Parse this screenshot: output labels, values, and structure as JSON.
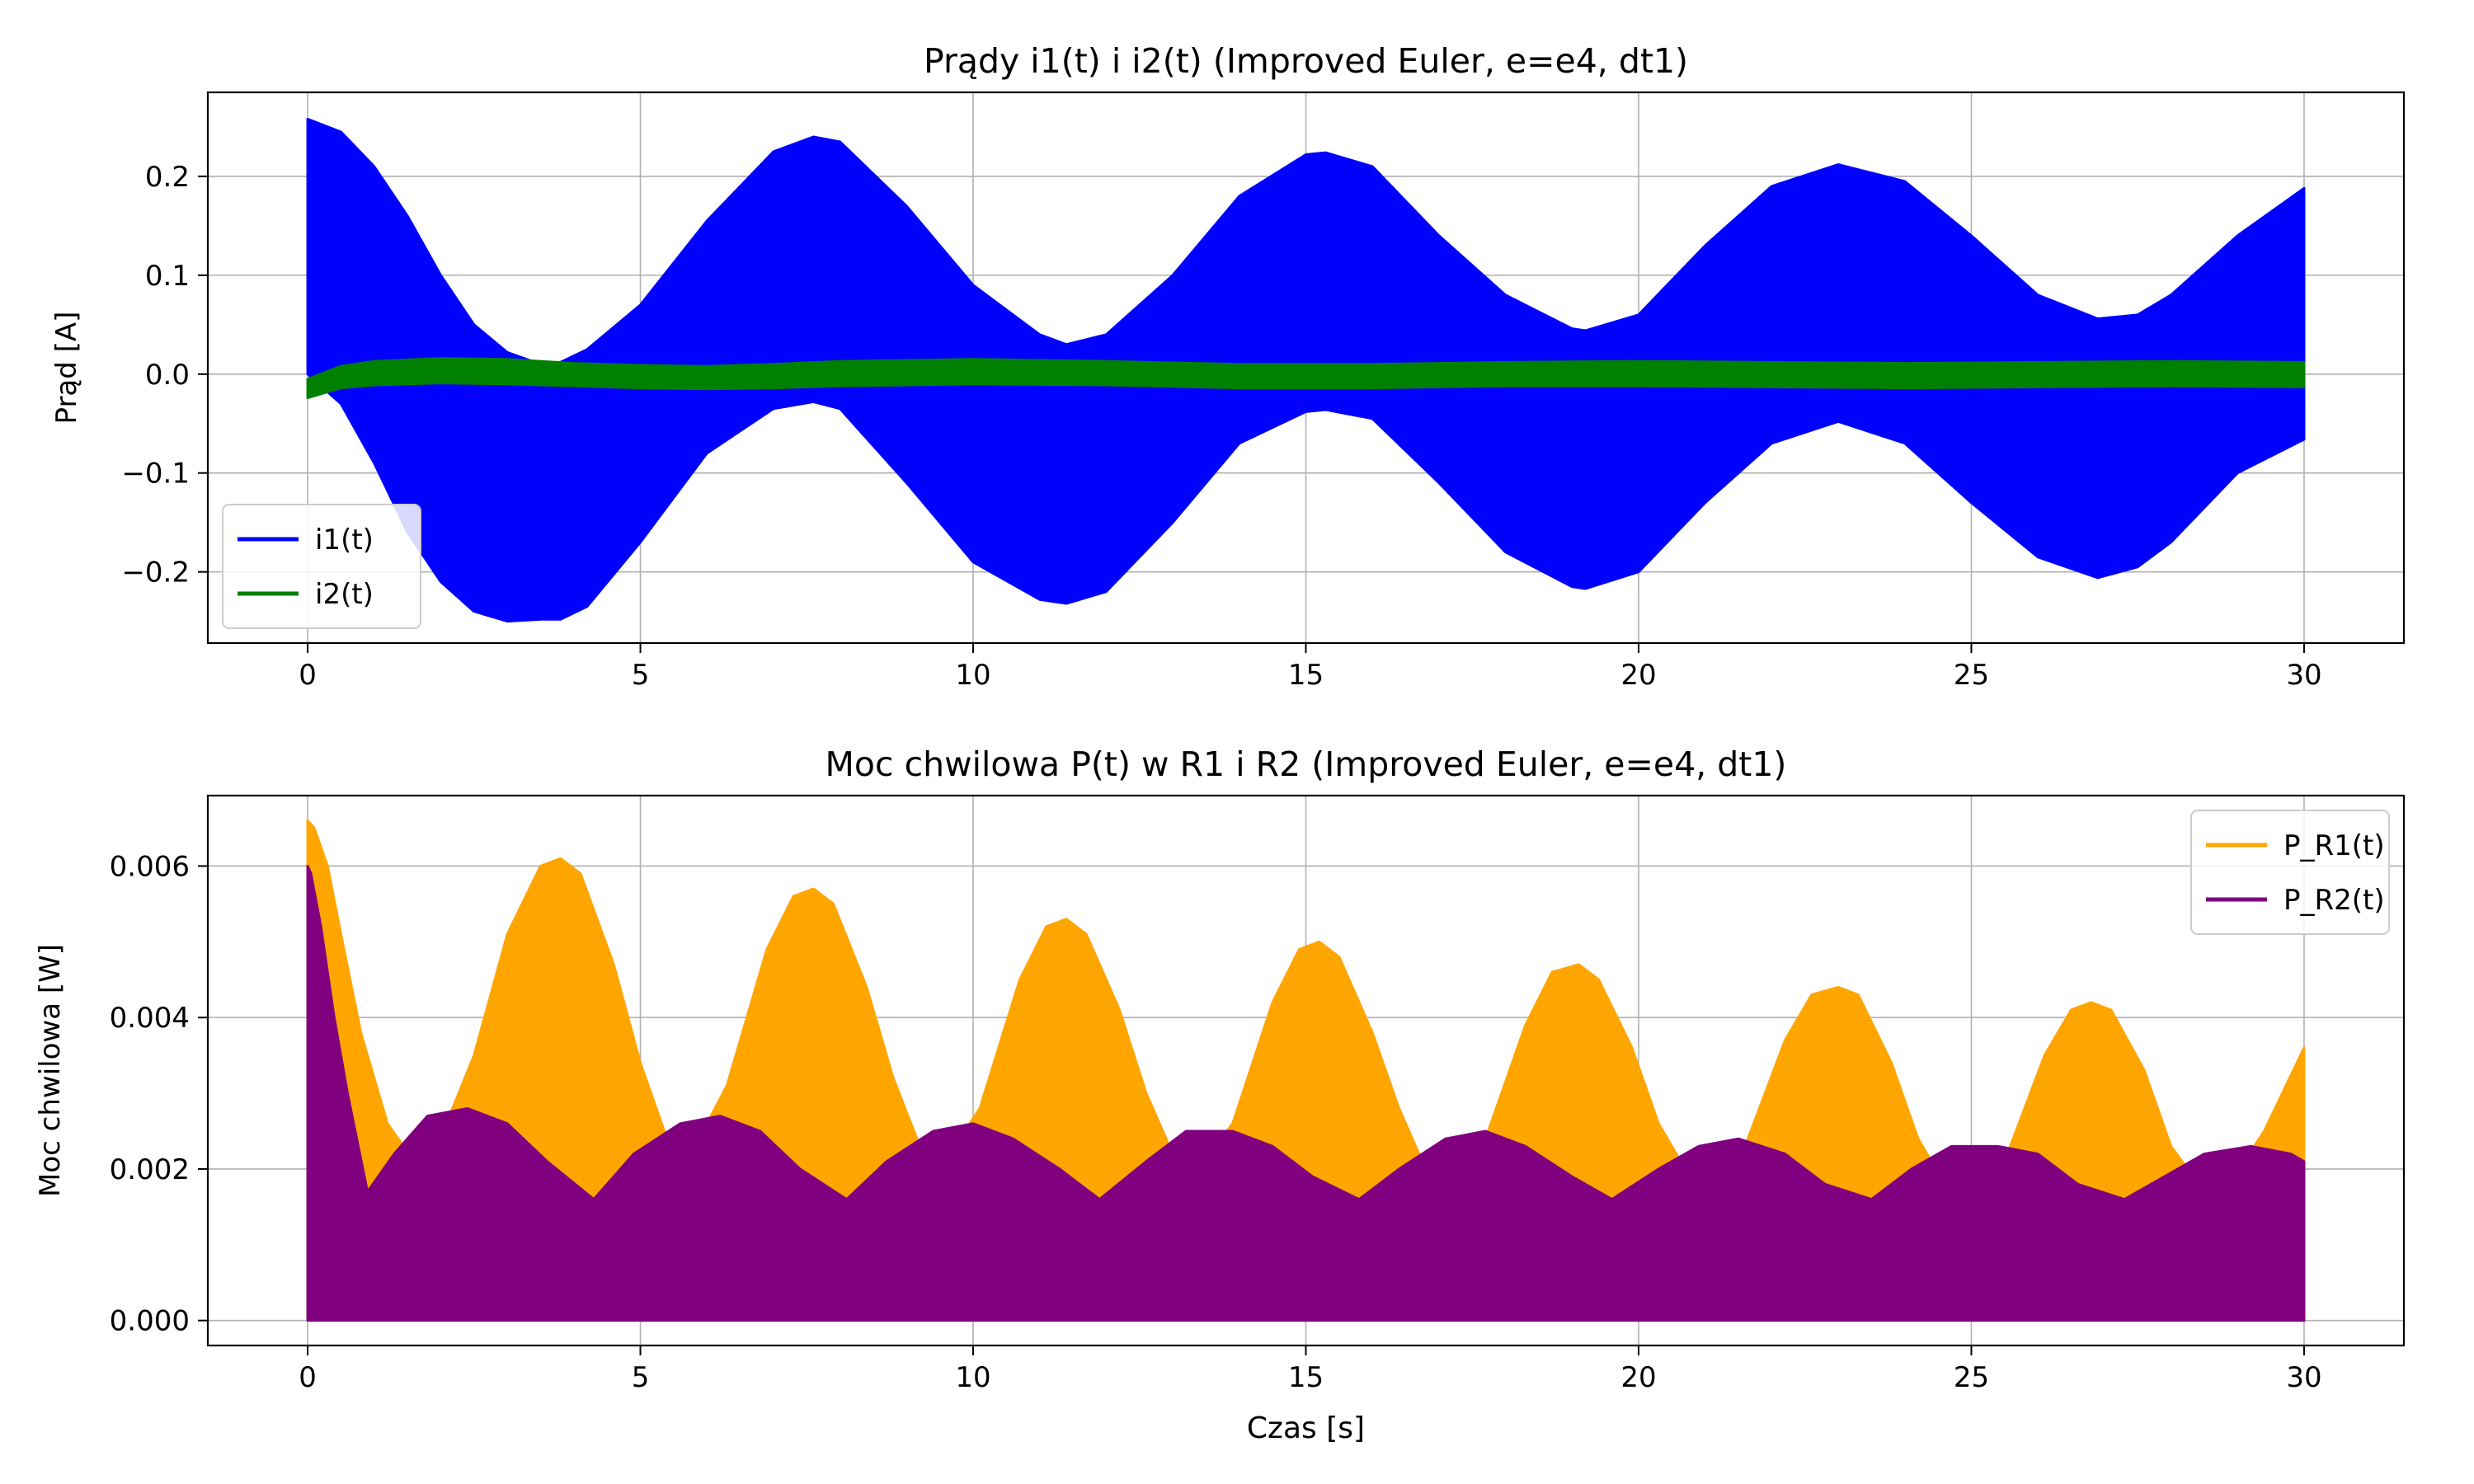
{
  "chart_data": [
    {
      "type": "line",
      "title": "Prądy i1(t) i i2(t) (Improved Euler, e=e4, dt1)",
      "xlabel": "",
      "ylabel": "Prąd [A]",
      "xlim": [
        -1.5,
        31.5
      ],
      "ylim": [
        -0.272,
        0.285
      ],
      "xticks": [
        0,
        5,
        10,
        15,
        20,
        25,
        30
      ],
      "xtick_labels": [
        "0",
        "5",
        "10",
        "15",
        "20",
        "25",
        "30"
      ],
      "yticks": [
        -0.2,
        -0.1,
        0.0,
        0.1,
        0.2
      ],
      "ytick_labels": [
        "−0.2",
        "−0.1",
        "0.0",
        "0.1",
        "0.2"
      ],
      "grid": true,
      "legend_position": "lower-left",
      "series": [
        {
          "name": "i1(t)",
          "color": "#0000ff",
          "render": "oscillation-band",
          "x": [
            0,
            0.5,
            1,
            1.5,
            2,
            2.5,
            3,
            3.5,
            3.8,
            4.2,
            5,
            6,
            7,
            7.6,
            8,
            9,
            10,
            11,
            11.4,
            12,
            13,
            14,
            15,
            15.3,
            16,
            17,
            18,
            19,
            19.2,
            20,
            21,
            22,
            23,
            24,
            25,
            26,
            26.9,
            27.5,
            28,
            29,
            30
          ],
          "upper": [
            0.258,
            0.245,
            0.21,
            0.16,
            0.1,
            0.05,
            0.022,
            0.01,
            0.012,
            0.025,
            0.07,
            0.155,
            0.225,
            0.24,
            0.235,
            0.17,
            0.09,
            0.04,
            0.03,
            0.04,
            0.1,
            0.18,
            0.222,
            0.224,
            0.21,
            0.14,
            0.08,
            0.046,
            0.044,
            0.06,
            0.13,
            0.19,
            0.212,
            0.195,
            0.14,
            0.08,
            0.056,
            0.06,
            0.08,
            0.14,
            0.188
          ],
          "lower": [
            0.0,
            -0.03,
            -0.09,
            -0.16,
            -0.21,
            -0.24,
            -0.25,
            -0.248,
            -0.248,
            -0.235,
            -0.17,
            -0.08,
            -0.035,
            -0.028,
            -0.035,
            -0.11,
            -0.19,
            -0.228,
            -0.232,
            -0.22,
            -0.15,
            -0.07,
            -0.038,
            -0.036,
            -0.045,
            -0.11,
            -0.18,
            -0.215,
            -0.217,
            -0.2,
            -0.13,
            -0.07,
            -0.048,
            -0.07,
            -0.13,
            -0.185,
            -0.206,
            -0.195,
            -0.17,
            -0.1,
            -0.066
          ]
        },
        {
          "name": "i2(t)",
          "color": "#008000",
          "render": "oscillation-band",
          "x": [
            0,
            0.5,
            1,
            2,
            3,
            4,
            5,
            6,
            7,
            8,
            10,
            12,
            14,
            16,
            18,
            20,
            22,
            24,
            26,
            28,
            30
          ],
          "upper": [
            -0.005,
            0.008,
            0.013,
            0.016,
            0.015,
            0.011,
            0.009,
            0.008,
            0.01,
            0.013,
            0.015,
            0.013,
            0.01,
            0.01,
            0.012,
            0.013,
            0.012,
            0.011,
            0.012,
            0.013,
            0.012
          ],
          "lower": [
            -0.024,
            -0.014,
            -0.011,
            -0.009,
            -0.01,
            -0.012,
            -0.014,
            -0.015,
            -0.014,
            -0.012,
            -0.01,
            -0.011,
            -0.014,
            -0.014,
            -0.012,
            -0.012,
            -0.013,
            -0.014,
            -0.013,
            -0.012,
            -0.013
          ]
        }
      ]
    },
    {
      "type": "line",
      "title": "Moc chwilowa P(t) w R1 i R2 (Improved Euler, e=e4, dt1)",
      "xlabel": "Czas [s]",
      "ylabel": "Moc chwilowa [W]",
      "xlim": [
        -1.5,
        31.5
      ],
      "ylim": [
        -0.00033,
        0.00693
      ],
      "xticks": [
        0,
        5,
        10,
        15,
        20,
        25,
        30
      ],
      "xtick_labels": [
        "0",
        "5",
        "10",
        "15",
        "20",
        "25",
        "30"
      ],
      "yticks": [
        0.0,
        0.002,
        0.004,
        0.006
      ],
      "ytick_labels": [
        "0.000",
        "0.002",
        "0.004",
        "0.006"
      ],
      "grid": true,
      "legend_position": "upper-right",
      "series": [
        {
          "name": "P_R1(t)",
          "color": "#ffa500",
          "render": "filled-envelope",
          "x": [
            0,
            0.1,
            0.3,
            0.5,
            0.8,
            1.2,
            1.6,
            1.9,
            2.5,
            3,
            3.5,
            3.8,
            4.1,
            4.6,
            5,
            5.4,
            5.7,
            6.3,
            6.9,
            7.3,
            7.6,
            7.9,
            8.4,
            8.8,
            9.2,
            9.5,
            10.1,
            10.7,
            11.1,
            11.4,
            11.7,
            12.2,
            12.6,
            13,
            13.3,
            13.9,
            14.5,
            14.9,
            15.2,
            15.5,
            16,
            16.4,
            16.8,
            17.1,
            17.7,
            18.3,
            18.7,
            19.1,
            19.4,
            19.9,
            20.3,
            20.7,
            21,
            21.6,
            22.2,
            22.6,
            23,
            23.3,
            23.8,
            24.2,
            24.6,
            24.9,
            25.5,
            26.1,
            26.5,
            26.8,
            27.1,
            27.6,
            28,
            28.5,
            28.8,
            29.4,
            30
          ],
          "upper": [
            0.0066,
            0.0065,
            0.006,
            0.0051,
            0.0038,
            0.0026,
            0.0021,
            0.0022,
            0.0035,
            0.0051,
            0.006,
            0.0061,
            0.0059,
            0.0047,
            0.0034,
            0.0024,
            0.0021,
            0.0031,
            0.0049,
            0.0056,
            0.0057,
            0.0055,
            0.0044,
            0.0032,
            0.0023,
            0.002,
            0.0028,
            0.0045,
            0.0052,
            0.0053,
            0.0051,
            0.0041,
            0.003,
            0.0022,
            0.0019,
            0.0026,
            0.0042,
            0.0049,
            0.005,
            0.0048,
            0.0038,
            0.0028,
            0.002,
            0.0018,
            0.0024,
            0.0039,
            0.0046,
            0.0047,
            0.0045,
            0.0036,
            0.0026,
            0.002,
            0.0017,
            0.0023,
            0.0037,
            0.0043,
            0.0044,
            0.0043,
            0.0034,
            0.0024,
            0.0018,
            0.0016,
            0.0021,
            0.0035,
            0.0041,
            0.0042,
            0.0041,
            0.0033,
            0.0023,
            0.0017,
            0.0017,
            0.0025,
            0.0036
          ]
        },
        {
          "name": "P_R2(t)",
          "color": "#800080",
          "render": "filled-envelope",
          "x": [
            0,
            0.05,
            0.2,
            0.4,
            0.6,
            0.9,
            1.3,
            1.8,
            2.4,
            3,
            3.6,
            4.3,
            4.9,
            5.6,
            6.2,
            6.8,
            7.4,
            8.1,
            8.7,
            9.4,
            10,
            10.6,
            11.3,
            11.9,
            12.6,
            13.2,
            13.9,
            14.5,
            15.1,
            15.8,
            16.4,
            17.1,
            17.7,
            18.3,
            19,
            19.6,
            20.3,
            20.9,
            21.5,
            22.2,
            22.8,
            23.5,
            24.1,
            24.7,
            25.4,
            26,
            26.6,
            27.3,
            27.9,
            28.5,
            29.2,
            29.8,
            30
          ],
          "upper": [
            0.006,
            0.0059,
            0.0052,
            0.004,
            0.003,
            0.0017,
            0.0022,
            0.0027,
            0.0028,
            0.0026,
            0.0021,
            0.0016,
            0.0022,
            0.0026,
            0.0027,
            0.0025,
            0.002,
            0.0016,
            0.0021,
            0.0025,
            0.0026,
            0.0024,
            0.002,
            0.0016,
            0.0021,
            0.0025,
            0.0025,
            0.0023,
            0.0019,
            0.0016,
            0.002,
            0.0024,
            0.0025,
            0.0023,
            0.0019,
            0.0016,
            0.002,
            0.0023,
            0.0024,
            0.0022,
            0.0018,
            0.0016,
            0.002,
            0.0023,
            0.0023,
            0.0022,
            0.0018,
            0.0016,
            0.0019,
            0.0022,
            0.0023,
            0.0022,
            0.0021
          ]
        }
      ]
    }
  ]
}
